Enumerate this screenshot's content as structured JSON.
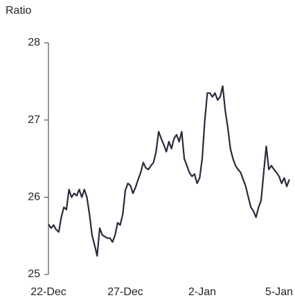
{
  "chart_data": {
    "type": "line",
    "y_label": "Ratio",
    "categories": [
      "22-Dec",
      null,
      null,
      null,
      null,
      null,
      null,
      null,
      null,
      null,
      null,
      null,
      null,
      null,
      null,
      null,
      null,
      null,
      null,
      null,
      null,
      null,
      null,
      null,
      null,
      null,
      null,
      null,
      null,
      null,
      "27-Dec",
      null,
      null,
      null,
      null,
      null,
      null,
      null,
      null,
      null,
      null,
      null,
      null,
      null,
      null,
      null,
      null,
      null,
      null,
      null,
      null,
      null,
      null,
      null,
      null,
      null,
      null,
      null,
      null,
      null,
      "2-Jan",
      null,
      null,
      null,
      null,
      null,
      null,
      null,
      null,
      null,
      null,
      null,
      null,
      null,
      null,
      null,
      null,
      null,
      null,
      null,
      null,
      null,
      null,
      null,
      null,
      null,
      null,
      null,
      null,
      null,
      "5-Jan",
      null,
      null,
      null,
      null
    ],
    "series": [
      {
        "color": "#262a3a",
        "values": [
          25.65,
          25.6,
          25.64,
          25.58,
          25.55,
          25.74,
          25.87,
          25.84,
          26.1,
          26.0,
          26.05,
          26.02,
          26.1,
          26.0,
          26.1,
          26.0,
          25.78,
          25.51,
          25.38,
          25.24,
          25.6,
          25.51,
          25.49,
          25.47,
          25.47,
          25.42,
          25.51,
          25.67,
          25.64,
          25.78,
          26.09,
          26.18,
          26.15,
          26.05,
          26.13,
          26.23,
          26.32,
          26.45,
          26.38,
          26.36,
          26.41,
          26.45,
          26.59,
          26.85,
          26.76,
          26.68,
          26.59,
          26.72,
          26.63,
          26.76,
          26.81,
          26.72,
          26.85,
          26.5,
          26.41,
          26.32,
          26.27,
          26.3,
          26.18,
          26.25,
          26.5,
          26.99,
          27.35,
          27.35,
          27.3,
          27.35,
          27.26,
          27.3,
          27.44,
          27.12,
          26.9,
          26.63,
          26.5,
          26.41,
          26.36,
          26.32,
          26.23,
          26.14,
          26.0,
          25.87,
          25.82,
          25.74,
          25.87,
          25.96,
          26.32,
          26.66,
          26.36,
          26.41,
          26.36,
          26.32,
          26.27,
          26.18,
          26.25,
          26.14,
          26.23
        ]
      }
    ],
    "ylim": [
      25,
      28
    ],
    "yticks": [
      25,
      26,
      27,
      28
    ]
  }
}
